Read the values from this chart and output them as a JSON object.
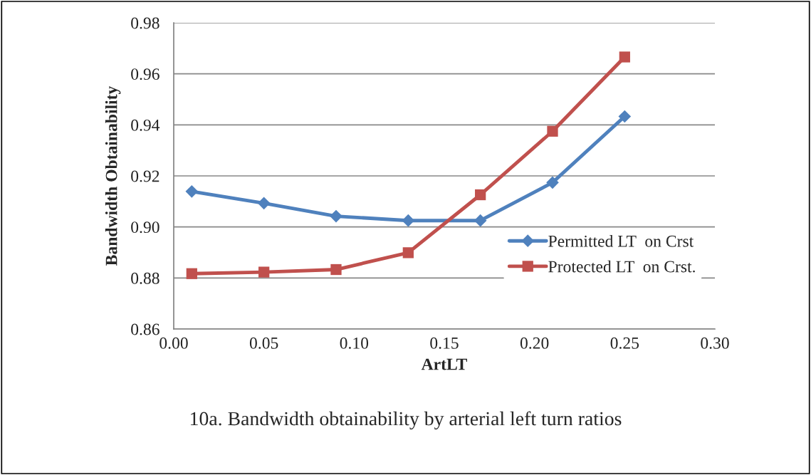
{
  "chart_data": {
    "type": "line",
    "xlabel": "ArtLT",
    "ylabel": "Bandwidth Obtainability",
    "x": [
      0.01,
      0.05,
      0.09,
      0.13,
      0.17,
      0.21,
      0.25
    ],
    "series": [
      {
        "name": "Permitted LT  on Crst",
        "color": "#4f81bd",
        "marker": "diamond",
        "values": [
          0.9139,
          0.9093,
          0.9042,
          0.9025,
          0.9025,
          0.9174,
          0.9433
        ]
      },
      {
        "name": "Protected LT  on Crst.",
        "color": "#c0504d",
        "marker": "square",
        "values": [
          0.8817,
          0.8823,
          0.8833,
          0.8899,
          0.9126,
          0.9375,
          0.9666
        ]
      }
    ],
    "xlim": [
      0.0,
      0.3
    ],
    "xticks": [
      {
        "value": 0.0,
        "label": "0.00"
      },
      {
        "value": 0.05,
        "label": "0.05"
      },
      {
        "value": 0.1,
        "label": "0.10"
      },
      {
        "value": 0.15,
        "label": "0.15"
      },
      {
        "value": 0.2,
        "label": "0.20"
      },
      {
        "value": 0.25,
        "label": "0.25"
      },
      {
        "value": 0.3,
        "label": "0.30"
      }
    ],
    "ylim": [
      0.86,
      0.98
    ],
    "yticks": [
      {
        "value": 0.86,
        "label": "0.86"
      },
      {
        "value": 0.88,
        "label": "0.88"
      },
      {
        "value": 0.9,
        "label": "0.90"
      },
      {
        "value": 0.92,
        "label": "0.92"
      },
      {
        "value": 0.94,
        "label": "0.94"
      },
      {
        "value": 0.96,
        "label": "0.96"
      },
      {
        "value": 0.98,
        "label": "0.98"
      }
    ],
    "grid": "y",
    "legend": "bottom right",
    "line_style": "solid",
    "annotations": [
      "10a. Bandwidth obtainability by arterial left turn ratios"
    ]
  }
}
